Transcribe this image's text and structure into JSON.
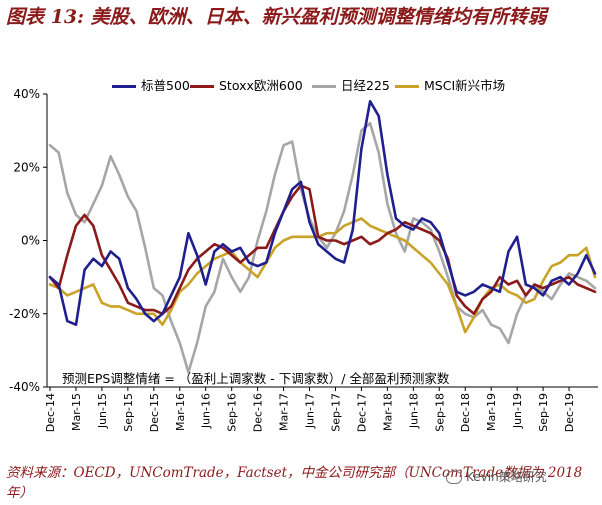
{
  "title": "图表 13: 美股、欧洲、日本、新兴盈利预测调整情绪均有所转弱",
  "source": "资料来源：OECD，UNComTrade，Factset，中金公司研究部（UNComTrade数据为 2018 年）",
  "watermark": "Kevin策略研究",
  "watermark_icon": "wechat-icon",
  "chart_data": {
    "type": "line",
    "ylim": [
      -40,
      40
    ],
    "y_ticks": [
      40,
      20,
      0,
      -20,
      -40
    ],
    "y_tick_labels": [
      "40%",
      "20%",
      "0%",
      "-20%",
      "-40%"
    ],
    "x_ticks": [
      "Dec-14",
      "Mar-15",
      "Jun-15",
      "Sep-15",
      "Dec-15",
      "Mar-16",
      "Jun-16",
      "Sep-16",
      "Dec-16",
      "Mar-17",
      "Jun-17",
      "Sep-17",
      "Dec-17",
      "Mar-18",
      "Jun-18",
      "Sep-18",
      "Dec-18",
      "Mar-19",
      "Jun-19",
      "Sep-19",
      "Dec-19"
    ],
    "x_tick_index": [
      0,
      3,
      6,
      9,
      12,
      15,
      18,
      21,
      24,
      27,
      30,
      33,
      36,
      39,
      42,
      45,
      48,
      51,
      54,
      57,
      60
    ],
    "annotation": "预测EPS调整情绪 = （盈利上调家数 - 下调家数）/ 全部盈利预测家数",
    "series": [
      {
        "name": "标普500",
        "color": "#1f1f8f",
        "values": [
          -10,
          -12,
          -22,
          -23,
          -8,
          -5,
          -7,
          -3,
          -5,
          -13,
          -16,
          -20,
          -22,
          -20,
          -15,
          -10,
          2,
          -4,
          -12,
          -3,
          -1,
          -3,
          -2,
          -6,
          -7,
          -6,
          2,
          8,
          14,
          16,
          5,
          -1,
          -3,
          -5,
          -6,
          3,
          25,
          38,
          34,
          18,
          6,
          4,
          3,
          6,
          5,
          2,
          -6,
          -14,
          -15,
          -14,
          -12,
          -13,
          -14,
          -3,
          1,
          -12,
          -13,
          -15,
          -11,
          -10,
          -12,
          -9,
          -4,
          -9
        ]
      },
      {
        "name": "Stoxx欧洲600",
        "color": "#8b1a1a",
        "values": [
          -10,
          -13,
          -4,
          4,
          7,
          4,
          -4,
          -8,
          -12,
          -17,
          -18,
          -19,
          -19,
          -20,
          -18,
          -13,
          -8,
          -5,
          -3,
          -1,
          -2,
          -4,
          -6,
          -4,
          -2,
          -2,
          3,
          8,
          12,
          15,
          14,
          1,
          0,
          0,
          -1,
          0,
          1,
          -1,
          0,
          2,
          3,
          5,
          4,
          3,
          2,
          0,
          -5,
          -15,
          -18,
          -20,
          -16,
          -14,
          -10,
          -12,
          -11,
          -15,
          -12,
          -13,
          -12,
          -11,
          -10,
          -12,
          -13,
          -14
        ]
      },
      {
        "name": "日经225",
        "color": "#a6a6a6",
        "values": [
          26,
          24,
          13,
          7,
          5,
          10,
          15,
          23,
          18,
          12,
          8,
          -2,
          -13,
          -15,
          -22,
          -28,
          -36,
          -28,
          -18,
          -14,
          -5,
          -10,
          -14,
          -10,
          0,
          8,
          18,
          26,
          27,
          14,
          6,
          1,
          -2,
          2,
          8,
          18,
          30,
          32,
          24,
          10,
          2,
          -3,
          6,
          5,
          3,
          -3,
          -10,
          -18,
          -20,
          -21,
          -19,
          -23,
          -24,
          -28,
          -20,
          -15,
          -12,
          -14,
          -16,
          -12,
          -9,
          -10,
          -11,
          -13
        ]
      },
      {
        "name": "MSCI新兴市场",
        "color": "#c9a227",
        "values": [
          -12,
          -13,
          -15,
          -14,
          -13,
          -12,
          -17,
          -18,
          -18,
          -19,
          -20,
          -20,
          -20,
          -23,
          -19,
          -14,
          -12,
          -9,
          -7,
          -5,
          -4,
          -3,
          -6,
          -8,
          -10,
          -6,
          -2,
          0,
          1,
          1,
          1,
          1,
          2,
          2,
          4,
          5,
          6,
          4,
          3,
          2,
          1,
          0,
          -2,
          -4,
          -6,
          -9,
          -12,
          -18,
          -25,
          -21,
          -16,
          -13,
          -12,
          -14,
          -15,
          -17,
          -16,
          -11,
          -7,
          -6,
          -4,
          -4,
          -2,
          -10
        ]
      }
    ]
  }
}
